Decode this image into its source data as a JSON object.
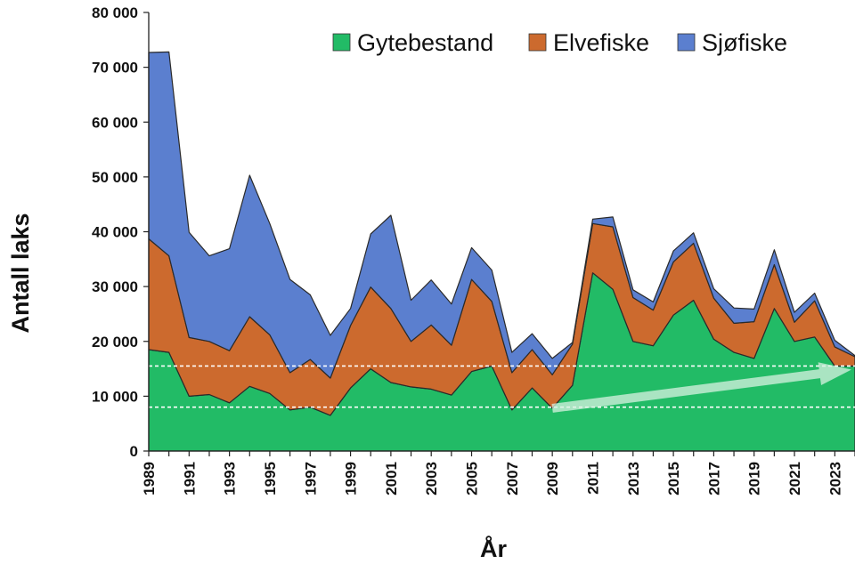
{
  "chart_data": {
    "type": "area",
    "stacked": true,
    "xlabel": "År",
    "ylabel": "Antall laks",
    "ylim": [
      0,
      80000
    ],
    "y_ticks": [
      0,
      10000,
      20000,
      30000,
      40000,
      50000,
      60000,
      70000,
      80000
    ],
    "y_tick_labels": [
      "0",
      "10 000",
      "20 000",
      "30 000",
      "40 000",
      "50 000",
      "60 000",
      "70 000",
      "80 000"
    ],
    "x": [
      1989,
      1990,
      1991,
      1992,
      1993,
      1994,
      1995,
      1996,
      1997,
      1998,
      1999,
      2000,
      2001,
      2002,
      2003,
      2004,
      2005,
      2006,
      2007,
      2008,
      2009,
      2010,
      2011,
      2012,
      2013,
      2014,
      2015,
      2016,
      2017,
      2018,
      2019,
      2020,
      2021,
      2022,
      2023,
      2024
    ],
    "x_tick_labels": [
      "1989",
      "1991",
      "1993",
      "1995",
      "1997",
      "1999",
      "2001",
      "2003",
      "2005",
      "2007",
      "2009",
      "2011",
      "2013",
      "2015",
      "2017",
      "2019",
      "2021",
      "2023"
    ],
    "series": [
      {
        "name": "Gytebestand",
        "color": "#22bb66",
        "values": [
          18500,
          18000,
          10000,
          10300,
          8800,
          11800,
          10500,
          7500,
          8000,
          6500,
          11500,
          15000,
          12500,
          11700,
          11300,
          10200,
          14500,
          15500,
          7500,
          11500,
          7800,
          12000,
          32500,
          29500,
          20000,
          19200,
          24800,
          27500,
          20400,
          18000,
          16900,
          26000,
          20000,
          20800,
          15500,
          15500
        ]
      },
      {
        "name": "Elvefiske",
        "color": "#cc6a2e",
        "values": [
          20200,
          17600,
          10700,
          9700,
          9500,
          12700,
          10700,
          6800,
          8700,
          6800,
          11400,
          14900,
          13500,
          8300,
          11700,
          9100,
          16800,
          11800,
          6800,
          7000,
          6100,
          7500,
          9000,
          11400,
          8000,
          6500,
          9700,
          10400,
          7500,
          5300,
          6700,
          8000,
          3500,
          6600,
          3500,
          1700
        ]
      },
      {
        "name": "Sjøfiske",
        "color": "#5b7fcf",
        "values": [
          34000,
          37200,
          19200,
          15600,
          18600,
          25800,
          20300,
          17000,
          11800,
          7800,
          3100,
          9700,
          17000,
          7500,
          8200,
          7500,
          5800,
          5700,
          3700,
          2900,
          3000,
          300,
          800,
          1800,
          1400,
          1500,
          2000,
          1900,
          1700,
          2800,
          2300,
          2700,
          1800,
          1400,
          1200,
          200
        ]
      }
    ],
    "reference_lines": [
      8000,
      15500
    ],
    "trend_arrow": {
      "from": [
        2009,
        7800
      ],
      "to": [
        2024,
        15500
      ]
    },
    "legend": {
      "position": "top-right"
    },
    "grid": false
  }
}
